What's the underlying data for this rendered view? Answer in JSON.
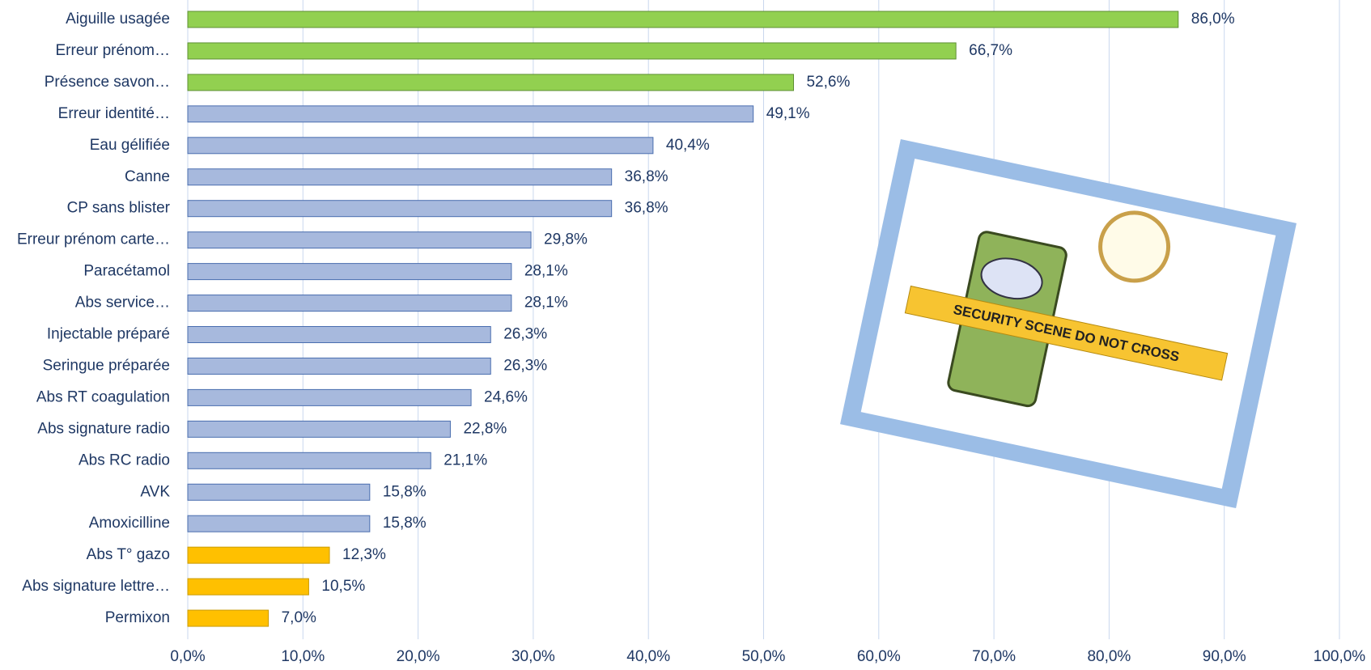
{
  "chart_data": {
    "type": "hbar",
    "categories": [
      "Aiguille usagée",
      "Erreur prénom…",
      "Présence savon…",
      "Erreur identité…",
      "Eau gélifiée",
      "Canne",
      "CP sans blister",
      "Erreur prénom carte…",
      "Paracétamol",
      "Abs service…",
      "Injectable préparé",
      "Seringue préparée",
      "Abs RT coagulation",
      "Abs signature radio",
      "Abs RC radio",
      "AVK",
      "Amoxicilline",
      "Abs T° gazo",
      "Abs signature lettre…",
      "Permixon"
    ],
    "values": [
      86.0,
      66.7,
      52.6,
      49.1,
      40.4,
      36.8,
      36.8,
      29.8,
      28.1,
      28.1,
      26.3,
      26.3,
      24.6,
      22.8,
      21.1,
      15.8,
      15.8,
      12.3,
      10.5,
      7.0
    ],
    "value_labels": [
      "86,0%",
      "66,7%",
      "52,6%",
      "49,1%",
      "40,4%",
      "36,8%",
      "36,8%",
      "29,8%",
      "28,1%",
      "28,1%",
      "26,3%",
      "26,3%",
      "24,6%",
      "22,8%",
      "21,1%",
      "15,8%",
      "15,8%",
      "12,3%",
      "10,5%",
      "7,0%"
    ],
    "colors": [
      "#92d050",
      "#92d050",
      "#92d050",
      "#a7b9dd",
      "#a7b9dd",
      "#a7b9dd",
      "#a7b9dd",
      "#a7b9dd",
      "#a7b9dd",
      "#a7b9dd",
      "#a7b9dd",
      "#a7b9dd",
      "#a7b9dd",
      "#a7b9dd",
      "#a7b9dd",
      "#a7b9dd",
      "#a7b9dd",
      "#ffc000",
      "#ffc000",
      "#ffc000"
    ],
    "xlim": [
      0,
      100
    ],
    "xticks": [
      {
        "value": 0,
        "label": "0,0%"
      },
      {
        "value": 10,
        "label": "10,0%"
      },
      {
        "value": 20,
        "label": "20,0%"
      },
      {
        "value": 30,
        "label": "30,0%"
      },
      {
        "value": 40,
        "label": "40,0%"
      },
      {
        "value": 50,
        "label": "50,0%"
      },
      {
        "value": 60,
        "label": "60,0%"
      },
      {
        "value": 70,
        "label": "70,0%"
      },
      {
        "value": 80,
        "label": "80,0%"
      },
      {
        "value": 90,
        "label": "90,0%"
      },
      {
        "value": 100,
        "label": "100,0%"
      }
    ],
    "grid": true,
    "annotation": "SECURITY SCENE DO NOT CROSS"
  }
}
